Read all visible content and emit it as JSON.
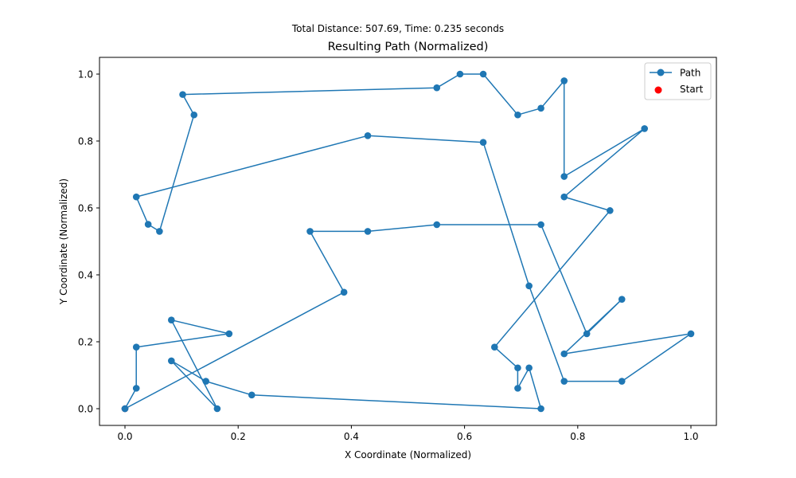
{
  "chart_data": {
    "type": "line",
    "suptitle": "Total Distance: 507.69, Time: 0.235 seconds",
    "title": "Resulting Path (Normalized)",
    "xlabel": "X Coordinate (Normalized)",
    "ylabel": "Y Coordinate (Normalized)",
    "xlim": [
      -0.045,
      1.045
    ],
    "ylim": [
      -0.05,
      1.05
    ],
    "xticks": [
      "0.0",
      "0.2",
      "0.4",
      "0.6",
      "0.8",
      "1.0"
    ],
    "yticks": [
      "0.0",
      "0.2",
      "0.4",
      "0.6",
      "0.8",
      "1.0"
    ],
    "grid": false,
    "legend": {
      "position": "top-right"
    },
    "series": [
      {
        "name": "Path",
        "color": "#1f77b4",
        "marker": "circle",
        "points": [
          [
            0.0,
            0.0
          ],
          [
            0.387,
            0.348
          ],
          [
            0.327,
            0.53
          ],
          [
            0.429,
            0.53
          ],
          [
            0.551,
            0.55
          ],
          [
            0.735,
            0.55
          ],
          [
            0.816,
            0.224
          ],
          [
            0.878,
            0.327
          ],
          [
            0.776,
            0.164
          ],
          [
            1.0,
            0.224
          ],
          [
            0.878,
            0.082
          ],
          [
            0.776,
            0.082
          ],
          [
            0.714,
            0.367
          ],
          [
            0.633,
            0.796
          ],
          [
            0.429,
            0.816
          ],
          [
            0.02,
            0.633
          ],
          [
            0.041,
            0.551
          ],
          [
            0.061,
            0.53
          ],
          [
            0.122,
            0.878
          ],
          [
            0.102,
            0.939
          ],
          [
            0.551,
            0.959
          ],
          [
            0.592,
            1.0
          ],
          [
            0.633,
            1.0
          ],
          [
            0.694,
            0.878
          ],
          [
            0.735,
            0.898
          ],
          [
            0.776,
            0.98
          ],
          [
            0.776,
            0.694
          ],
          [
            0.918,
            0.837
          ],
          [
            0.776,
            0.633
          ],
          [
            0.857,
            0.592
          ],
          [
            0.653,
            0.184
          ],
          [
            0.694,
            0.122
          ],
          [
            0.694,
            0.061
          ],
          [
            0.714,
            0.122
          ],
          [
            0.735,
            0.0
          ],
          [
            0.224,
            0.041
          ],
          [
            0.143,
            0.082
          ],
          [
            0.082,
            0.143
          ],
          [
            0.163,
            0.0
          ],
          [
            0.082,
            0.265
          ],
          [
            0.184,
            0.224
          ],
          [
            0.02,
            0.184
          ],
          [
            0.02,
            0.061
          ],
          [
            0.0,
            0.0
          ]
        ]
      },
      {
        "name": "Start",
        "color": "#ff0000",
        "marker": "circle",
        "points": [
          [
            0.0,
            0.0
          ]
        ]
      }
    ]
  }
}
